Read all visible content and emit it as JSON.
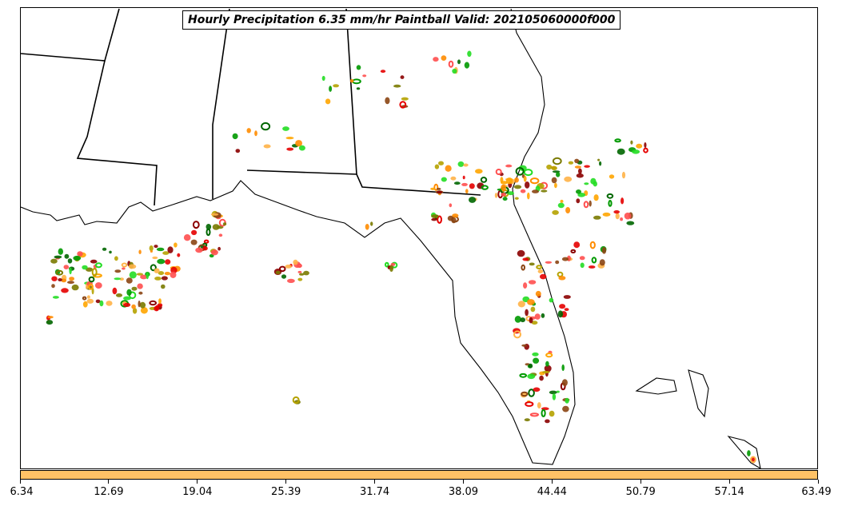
{
  "title": "Hourly Precipitation 6.35 mm/hr Paintball Valid: 202105060000f000",
  "map": {
    "region": "Southeastern United States",
    "features": [
      "state-borders",
      "coastlines",
      "precipitation-contours"
    ]
  },
  "member_colors": [
    "#e60000",
    "#ff8c00",
    "#ffb347",
    "#22dd22",
    "#006600",
    "#8b0000",
    "#b5a200",
    "#7a7a00",
    "#ff4f4f",
    "#8b4513",
    "#ffa500",
    "#009900"
  ],
  "colorbar": {
    "fill_color": "#ffc266",
    "ticks": [
      "6.34",
      "12.69",
      "19.04",
      "25.39",
      "31.74",
      "38.09",
      "44.44",
      "50.79",
      "57.14",
      "63.49"
    ]
  }
}
